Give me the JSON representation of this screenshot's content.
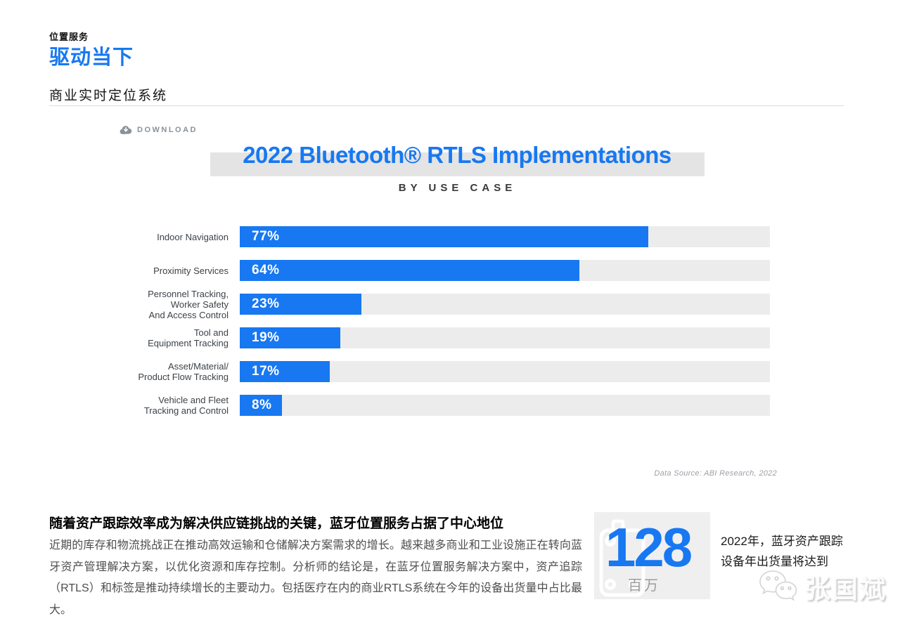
{
  "page": {
    "eyebrow": "位置服务",
    "title": "驱动当下",
    "section_title": "商业实时定位系统"
  },
  "toolbar": {
    "download_label": "DOWNLOAD"
  },
  "chart_data": {
    "type": "bar",
    "orientation": "horizontal",
    "title": "2022 Bluetooth® RTLS Implementations",
    "subtitle": "BY USE CASE",
    "categories": [
      "Indoor Navigation",
      "Proximity Services",
      "Personnel Tracking,\nWorker Safety\nAnd Access Control",
      "Tool and\nEquipment Tracking",
      "Asset/Material/\nProduct Flow Tracking",
      "Vehicle and Fleet\nTracking and Control"
    ],
    "values": [
      77,
      64,
      23,
      19,
      17,
      8
    ],
    "value_labels": [
      "77%",
      "64%",
      "23%",
      "19%",
      "17%",
      "8%"
    ],
    "xlim": [
      0,
      100
    ],
    "grid": false,
    "legend": "none",
    "bar_color": "#1778F2",
    "track_color": "#ececec",
    "source": "Data Source: ABI Research, 2022"
  },
  "article": {
    "heading": "随着资产跟踪效率成为解决供应链挑战的关键，蓝牙位置服务占据了中心地位",
    "body": "近期的库存和物流挑战正在推动高效运输和仓储解决方案需求的增长。越来越多商业和工业设施正在转向蓝牙资产管理解决方案，以优化资源和库存控制。分析师的结论是，在蓝牙位置服务解决方案中，资产追踪（RTLS）和标签是推动持续增长的主要动力。包括医疗在内的商业RTLS系统在今年的设备出货量中占比最大。"
  },
  "stat": {
    "value": "128",
    "unit": "百万",
    "caption": "2022年，蓝牙资产跟踪设备年出货量将达到"
  },
  "watermark": {
    "name": "张国斌",
    "icon": "wechat-icon"
  },
  "colors": {
    "accent_blue": "#1778F2",
    "title_band_gray": "#e4e4e4",
    "track_gray": "#ececec",
    "card_gray": "#efefef"
  }
}
